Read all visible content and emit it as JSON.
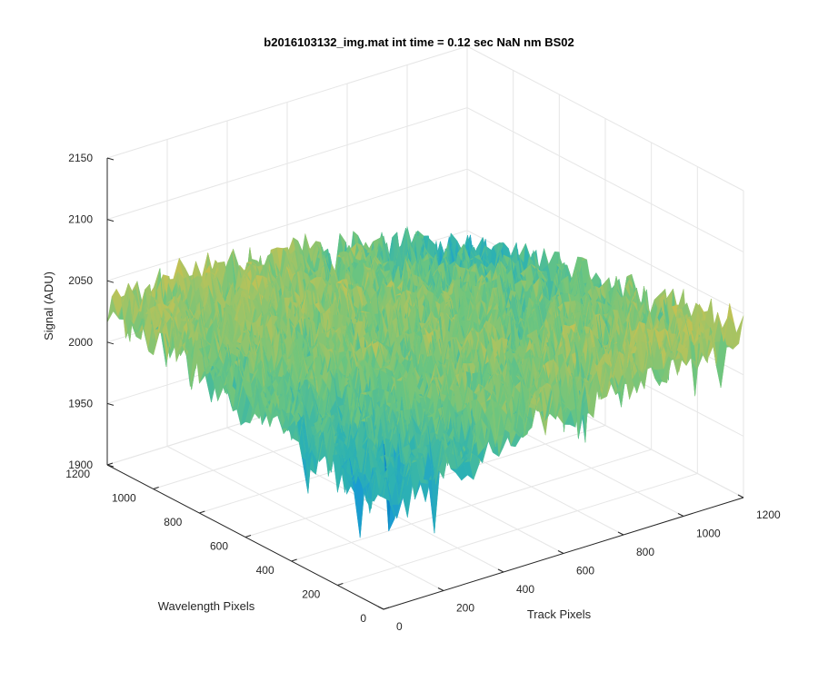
{
  "chart_data": {
    "type": "surface3d",
    "title": "b2016103132_img.mat int time = 0.12 sec  NaN nm BS02",
    "xlabel": "Track Pixels",
    "ylabel": "Wavelength Pixels",
    "zlabel": "Signal (ADU)",
    "xlim": [
      0,
      1200
    ],
    "ylim": [
      0,
      1200
    ],
    "zlim": [
      1900,
      2150
    ],
    "xticks": [
      0,
      200,
      400,
      600,
      800,
      1000,
      1200
    ],
    "yticks": [
      0,
      200,
      400,
      600,
      800,
      1000,
      1200
    ],
    "zticks": [
      1900,
      1950,
      2000,
      2050,
      2100,
      2150
    ],
    "x_tick_labels": [
      "0",
      "200",
      "400",
      "600",
      "800",
      "1000",
      "1200"
    ],
    "y_tick_labels": [
      "0",
      "200",
      "400",
      "600",
      "800",
      "1000",
      "1200"
    ],
    "z_tick_labels": [
      "1900",
      "1950",
      "2000",
      "2050",
      "2100",
      "2150"
    ],
    "grid": true,
    "colormap": "parula",
    "surface_mean": 2010,
    "surface_min": 1925,
    "surface_max": 2115,
    "surface_shape_note": "saddle: higher near track 0 / wavelength 1200 corner and track 1200 / wavelength 0 corner",
    "colormap_stops": [
      "#0072bd",
      "#1b9dd0",
      "#2fb3b0",
      "#6cc57f",
      "#b8c35a",
      "#e9b93a",
      "#f5cf2a"
    ]
  },
  "colors": {
    "grid": "#e6e6e6",
    "axis": "#262626",
    "background": "#ffffff"
  }
}
